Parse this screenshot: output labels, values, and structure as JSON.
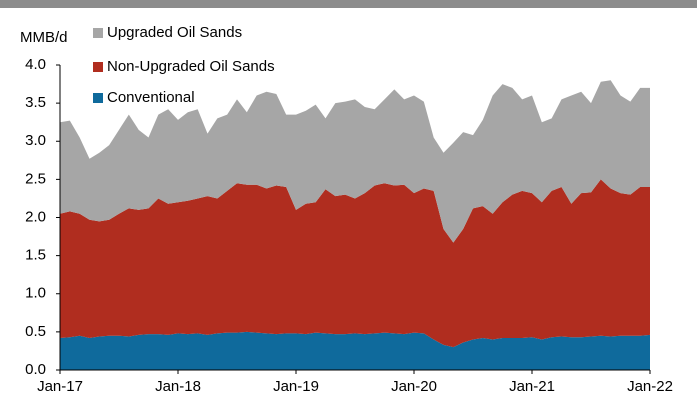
{
  "chart_data": {
    "type": "stacked_area",
    "y_label": "MMB/d",
    "categories": [
      "Jan-17",
      null,
      null,
      null,
      null,
      null,
      null,
      null,
      null,
      null,
      null,
      null,
      "Jan-18",
      null,
      null,
      null,
      null,
      null,
      null,
      null,
      null,
      null,
      null,
      null,
      "Jan-19",
      null,
      null,
      null,
      null,
      null,
      null,
      null,
      null,
      null,
      null,
      null,
      "Jan-20",
      null,
      null,
      null,
      null,
      null,
      null,
      null,
      null,
      null,
      null,
      null,
      "Jan-21",
      null,
      null,
      null,
      null,
      null,
      null,
      null,
      null,
      null,
      null,
      null,
      "Jan-22"
    ],
    "series": [
      {
        "name": "Conventional",
        "color": "#0f6a9c",
        "values": [
          0.42,
          0.43,
          0.45,
          0.42,
          0.44,
          0.45,
          0.45,
          0.44,
          0.46,
          0.47,
          0.47,
          0.46,
          0.48,
          0.47,
          0.48,
          0.46,
          0.48,
          0.49,
          0.49,
          0.5,
          0.49,
          0.48,
          0.47,
          0.48,
          0.48,
          0.47,
          0.49,
          0.48,
          0.47,
          0.47,
          0.48,
          0.47,
          0.48,
          0.49,
          0.48,
          0.47,
          0.49,
          0.48,
          0.4,
          0.33,
          0.3,
          0.36,
          0.4,
          0.42,
          0.4,
          0.42,
          0.42,
          0.42,
          0.43,
          0.4,
          0.43,
          0.44,
          0.43,
          0.43,
          0.44,
          0.45,
          0.44,
          0.45,
          0.45,
          0.45,
          0.46
        ]
      },
      {
        "name": "Non-Upgraded Oil Sands",
        "color": "#b02d1f",
        "values": [
          1.63,
          1.65,
          1.6,
          1.55,
          1.51,
          1.52,
          1.6,
          1.68,
          1.64,
          1.65,
          1.78,
          1.72,
          1.72,
          1.75,
          1.77,
          1.82,
          1.77,
          1.86,
          1.96,
          1.93,
          1.94,
          1.9,
          1.95,
          1.92,
          1.62,
          1.71,
          1.71,
          1.89,
          1.81,
          1.83,
          1.77,
          1.85,
          1.94,
          1.96,
          1.94,
          1.96,
          1.83,
          1.9,
          1.95,
          1.52,
          1.37,
          1.49,
          1.72,
          1.73,
          1.65,
          1.78,
          1.88,
          1.93,
          1.89,
          1.8,
          1.92,
          1.96,
          1.75,
          1.89,
          1.89,
          2.05,
          1.94,
          1.87,
          1.85,
          1.95,
          1.94
        ]
      },
      {
        "name": "Upgraded Oil Sands",
        "color": "#a6a6a6",
        "values": [
          1.2,
          1.19,
          1.0,
          0.8,
          0.9,
          0.98,
          1.1,
          1.23,
          1.05,
          0.93,
          1.1,
          1.24,
          1.08,
          1.16,
          1.17,
          0.82,
          1.05,
          1.0,
          1.1,
          0.95,
          1.17,
          1.27,
          1.2,
          0.95,
          1.25,
          1.22,
          1.28,
          0.93,
          1.22,
          1.22,
          1.3,
          1.13,
          1.0,
          1.1,
          1.26,
          1.12,
          1.28,
          1.14,
          0.7,
          1.0,
          1.31,
          1.27,
          0.96,
          1.13,
          1.55,
          1.55,
          1.4,
          1.2,
          1.28,
          1.05,
          0.95,
          1.15,
          1.42,
          1.33,
          1.17,
          1.28,
          1.42,
          1.28,
          1.22,
          1.3,
          1.3
        ]
      }
    ],
    "ylim": [
      0,
      4
    ],
    "yticks": [
      {
        "value": 0,
        "label": "0.0"
      },
      {
        "value": 0.5,
        "label": "0.5"
      },
      {
        "value": 1,
        "label": "1.0"
      },
      {
        "value": 1.5,
        "label": "1.5"
      },
      {
        "value": 2,
        "label": "2.0"
      },
      {
        "value": 2.5,
        "label": "2.5"
      },
      {
        "value": 3,
        "label": "3.0"
      },
      {
        "value": 3.5,
        "label": "3.5"
      },
      {
        "value": 4,
        "label": "4.0"
      }
    ],
    "legend": "top-left"
  }
}
